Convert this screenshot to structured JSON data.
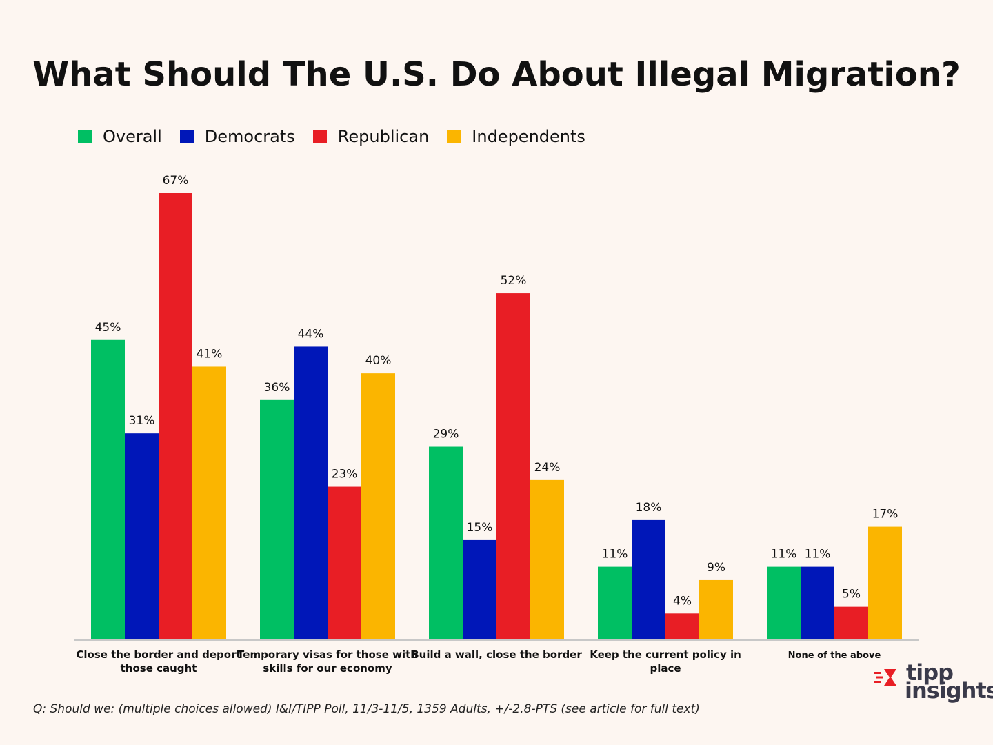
{
  "chart_data": {
    "type": "bar",
    "title": "What Should The U.S. Do About Illegal Migration?",
    "categories": [
      [
        "Close the border and deport",
        "those caught"
      ],
      [
        "Temporary visas for those with",
        "skills for our economy"
      ],
      [
        "Build a wall, close the border"
      ],
      [
        "Keep the current policy in",
        "place"
      ],
      [
        "None of the above"
      ]
    ],
    "series": [
      {
        "name": "Overall",
        "color": "#00bf63",
        "values": [
          45,
          36,
          29,
          11,
          11
        ]
      },
      {
        "name": "Democrats",
        "color": "#0017b8",
        "values": [
          31,
          44,
          15,
          18,
          11
        ]
      },
      {
        "name": "Republican",
        "color": "#e81e25",
        "values": [
          67,
          23,
          52,
          4,
          5
        ]
      },
      {
        "name": "Independents",
        "color": "#fbb500",
        "values": [
          41,
          40,
          24,
          9,
          17
        ]
      }
    ],
    "value_suffix": "%",
    "ylim": [
      0,
      67
    ],
    "legend_position": "top-left",
    "grid": false
  },
  "footnote": "Q: Should we: (multiple choices allowed) I&I/TIPP Poll, 11/3-11/5, 1359 Adults, +/-2.8-PTS (see article for full text)",
  "logo": {
    "line1": "tipp",
    "line2": "insights"
  }
}
